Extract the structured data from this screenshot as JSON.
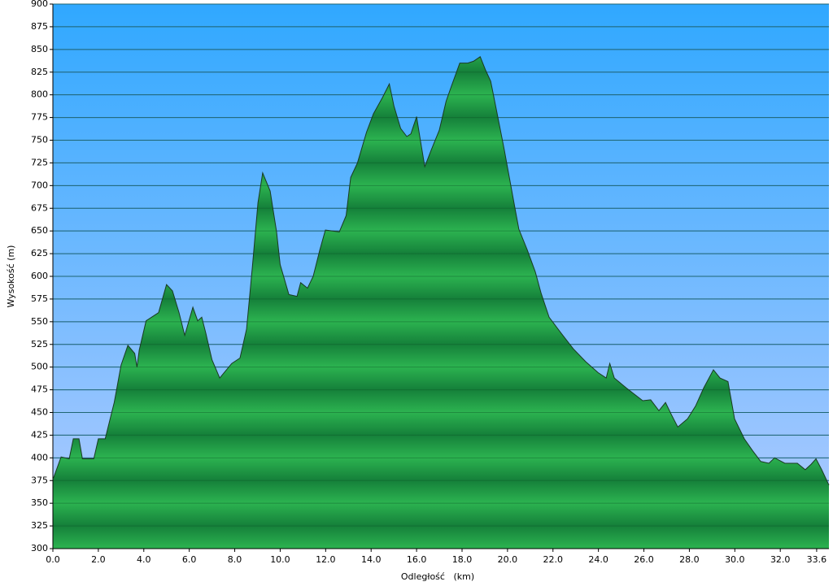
{
  "chart_data": {
    "type": "area",
    "xlabel": "Odległość   (km)",
    "ylabel": "Wysokość (m)",
    "x": [
      0,
      0.36,
      0.72,
      0.9,
      1.15,
      1.3,
      1.8,
      2.0,
      2.3,
      2.7,
      3.0,
      3.3,
      3.6,
      3.7,
      3.8,
      4.1,
      4.65,
      5.0,
      5.26,
      5.55,
      5.8,
      6.16,
      6.37,
      6.55,
      6.73,
      7.0,
      7.34,
      7.87,
      8.23,
      8.52,
      8.77,
      9.02,
      9.23,
      9.56,
      9.84,
      10.0,
      10.38,
      10.74,
      10.9,
      11.2,
      11.45,
      11.74,
      11.99,
      12.6,
      12.9,
      13.1,
      13.4,
      13.8,
      14.1,
      14.5,
      14.8,
      15.0,
      15.3,
      15.57,
      15.75,
      16.0,
      16.18,
      16.36,
      16.64,
      17.0,
      17.3,
      17.54,
      17.9,
      18.25,
      18.5,
      18.8,
      19.04,
      19.26,
      19.58,
      19.86,
      20.22,
      20.5,
      20.87,
      21.22,
      21.47,
      21.83,
      22.37,
      22.9,
      23.44,
      23.98,
      24.34,
      24.5,
      24.7,
      25.23,
      25.95,
      26.3,
      26.66,
      26.95,
      27.2,
      27.49,
      27.92,
      28.27,
      28.63,
      29.06,
      29.35,
      29.7,
      29.99,
      30.42,
      30.78,
      31.14,
      31.5,
      31.75,
      32.2,
      32.75,
      33.1,
      33.36,
      33.57,
      33.82,
      34.14
    ],
    "values": [
      376,
      401,
      399,
      421,
      421,
      399,
      399,
      421,
      421,
      461,
      502,
      524,
      515,
      500,
      519,
      551,
      560,
      591,
      584,
      560,
      535,
      566,
      551,
      555,
      537,
      508,
      488,
      504,
      510,
      542,
      609,
      681,
      714,
      694,
      649,
      613,
      580,
      578,
      593,
      587,
      600,
      629,
      651,
      649,
      667,
      709,
      725,
      759,
      779,
      797,
      812,
      788,
      763,
      754,
      757,
      776,
      748,
      721,
      739,
      761,
      793,
      810,
      835,
      835,
      837,
      842,
      827,
      815,
      775,
      739,
      690,
      652,
      629,
      605,
      582,
      555,
      537,
      520,
      506,
      494,
      488,
      504,
      488,
      477,
      463,
      464,
      452,
      461,
      448,
      434,
      443,
      457,
      477,
      497,
      488,
      484,
      443,
      421,
      408,
      396,
      394,
      400,
      394,
      394,
      387,
      393,
      399,
      387,
      370
    ],
    "color": "#1f9e40",
    "xlim": [
      0,
      34.14
    ],
    "ylim": [
      300,
      900
    ],
    "xticks": [
      {
        "value": 0,
        "label": "0.0"
      },
      {
        "value": 2,
        "label": "2.0"
      },
      {
        "value": 4,
        "label": "4.0"
      },
      {
        "value": 6,
        "label": "6.0"
      },
      {
        "value": 8,
        "label": "8.0"
      },
      {
        "value": 10,
        "label": "10.0"
      },
      {
        "value": 12,
        "label": "12.0"
      },
      {
        "value": 14,
        "label": "14.0"
      },
      {
        "value": 16,
        "label": "16.0"
      },
      {
        "value": 18,
        "label": "18.0"
      },
      {
        "value": 20,
        "label": "20.0"
      },
      {
        "value": 22,
        "label": "22.0"
      },
      {
        "value": 24,
        "label": "24.0"
      },
      {
        "value": 26,
        "label": "26.0"
      },
      {
        "value": 28,
        "label": "28.0"
      },
      {
        "value": 30,
        "label": "30.0"
      },
      {
        "value": 32,
        "label": "32.0"
      },
      33.6
    ],
    "yticks": [
      300,
      325,
      350,
      375,
      400,
      425,
      450,
      475,
      500,
      525,
      550,
      575,
      600,
      625,
      650,
      675,
      700,
      725,
      750,
      775,
      800,
      825,
      850,
      875,
      900
    ],
    "grid": true
  }
}
